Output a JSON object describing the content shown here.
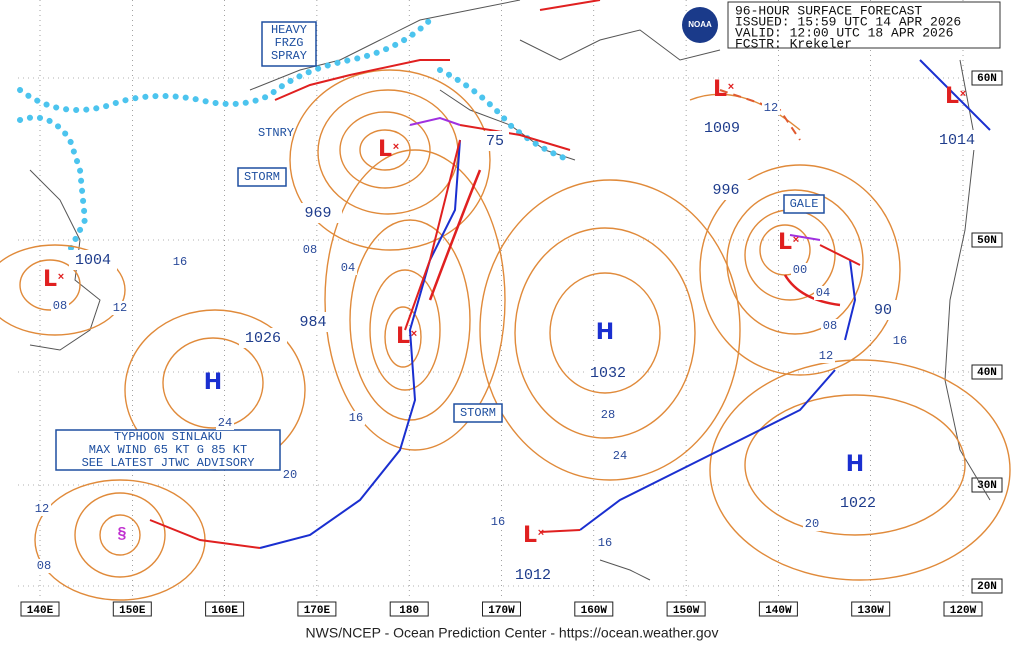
{
  "header": {
    "title": "96-HOUR SURFACE FORECAST",
    "issued": "ISSUED: 15:59 UTC 14 APR 2026",
    "valid": "VALID:  12:00 UTC 18 APR 2026",
    "forecaster": "FCSTR:  Krekeler",
    "logo": "NOAA"
  },
  "map": {
    "longitudes": [
      "140E",
      "150E",
      "160E",
      "170E",
      "180",
      "170W",
      "160W",
      "150W",
      "140W",
      "130W",
      "120W"
    ],
    "latitudes": [
      "60N",
      "50N",
      "40N",
      "30N",
      "20N"
    ],
    "highs": [
      {
        "symbol": "H",
        "pressure": "1026"
      },
      {
        "symbol": "H",
        "pressure": "1032"
      },
      {
        "symbol": "H",
        "pressure": "1022"
      }
    ],
    "lows": [
      {
        "symbol": "L",
        "pressure": "969"
      },
      {
        "symbol": "L",
        "pressure": "984"
      },
      {
        "symbol": "L",
        "pressure": "1004"
      },
      {
        "symbol": "L",
        "pressure": "1009"
      },
      {
        "symbol": "L",
        "pressure": "996"
      },
      {
        "symbol": "L",
        "pressure": "1014"
      },
      {
        "symbol": "L",
        "pressure": "1012"
      }
    ],
    "wind_labels": [
      "75",
      "90"
    ],
    "warnings": {
      "spray": [
        "HEAVY",
        "FRZG",
        "SPRAY"
      ],
      "stationary": "STNRY",
      "storm_west": "STORM",
      "storm_central": "STORM",
      "gale": "GALE"
    },
    "typhoon": [
      "TYPHOON SINLAKU",
      "MAX WIND 65 KT G 85 KT",
      "SEE LATEST JTWC ADVISORY"
    ],
    "isobar_labels": [
      "16",
      "08",
      "12",
      "08",
      "04",
      "16",
      "24",
      "20",
      "12",
      "08",
      "16",
      "16",
      "28",
      "24",
      "20",
      "12",
      "08",
      "04",
      "00",
      "16",
      "12"
    ]
  },
  "footer": "NWS/NCEP - Ocean Prediction Center - https://ocean.weather.gov"
}
